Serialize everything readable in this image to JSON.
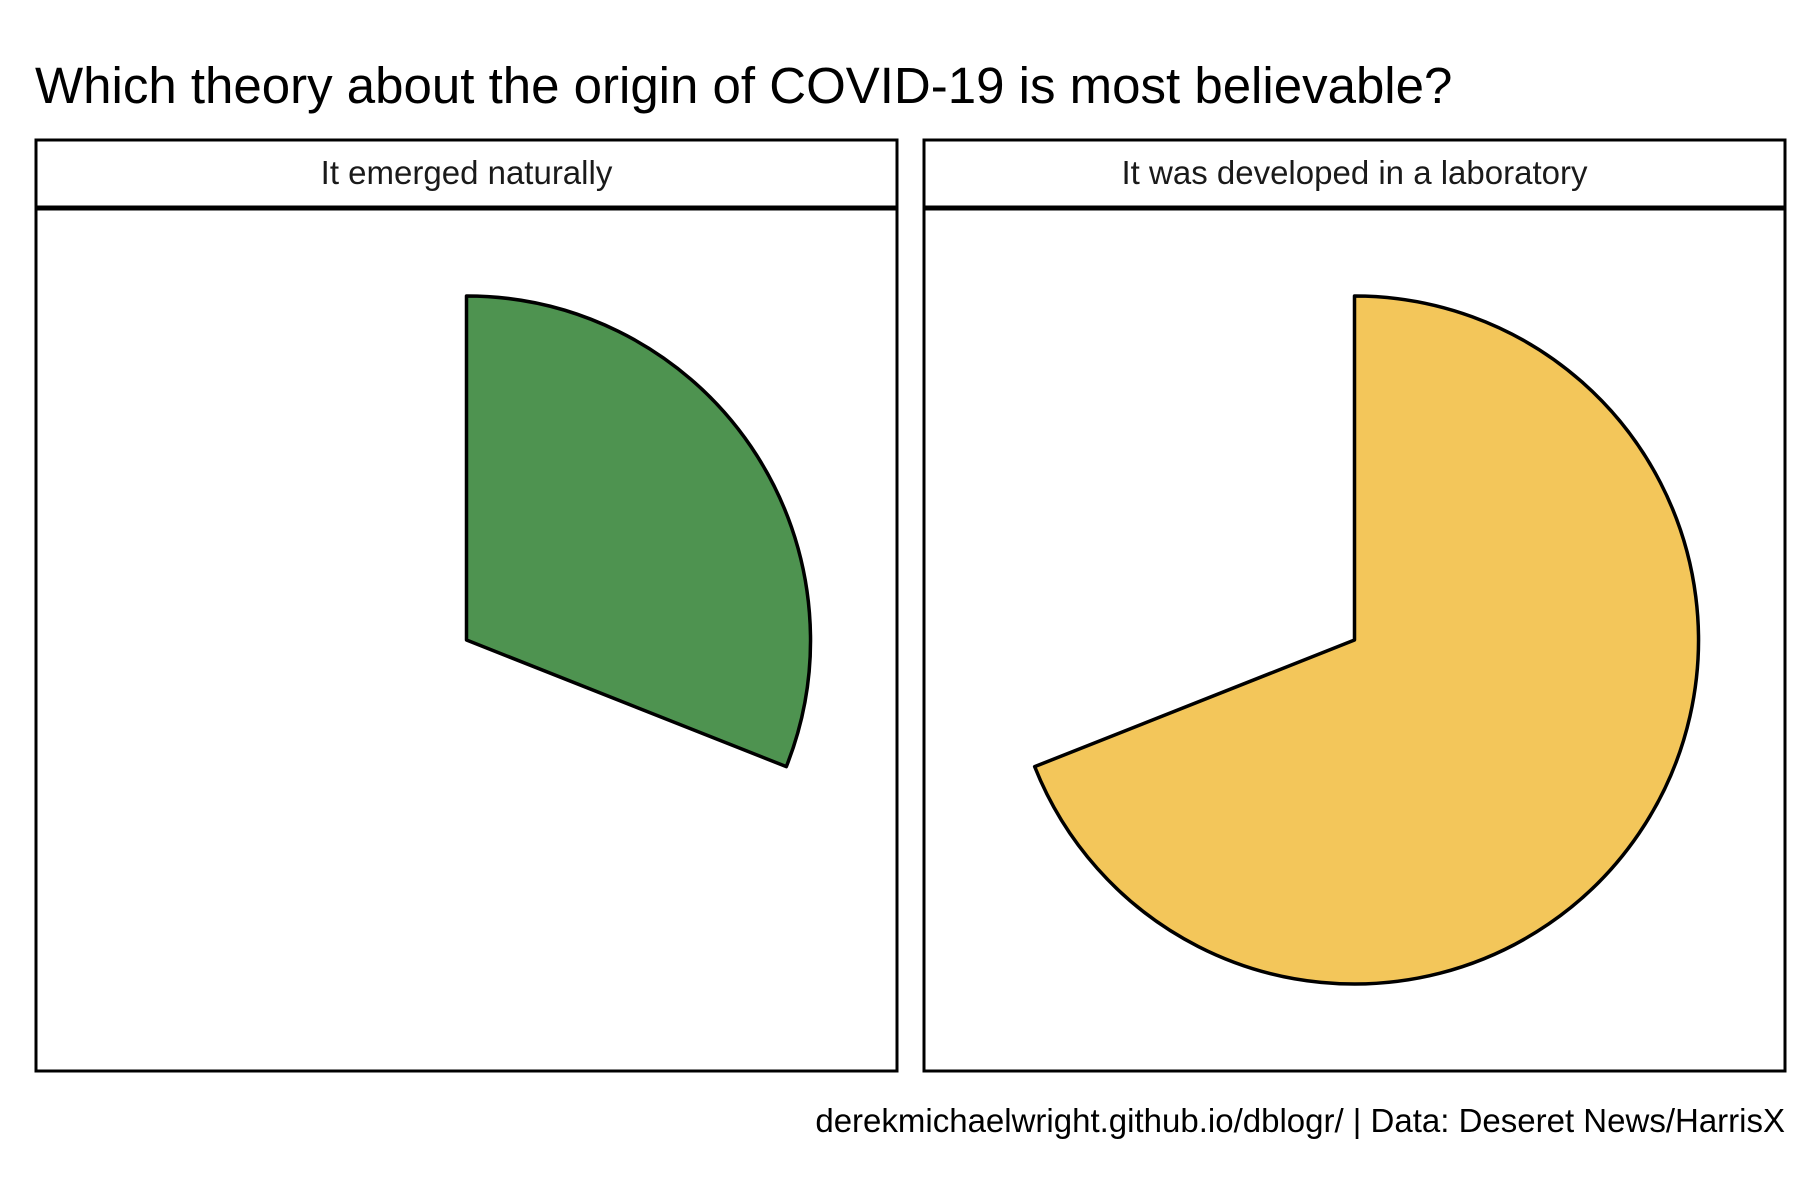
{
  "chart_data": {
    "type": "pie",
    "title": "Which theory about the origin of COVID-19 is most believable?",
    "caption": "derekmichaelwright.github.io/dblogr/ | Data: Deseret News/HarrisX",
    "unit": "percent",
    "panels": [
      {
        "label": "It emerged naturally",
        "value": 31,
        "color": "#4e9350"
      },
      {
        "label": "It was developed in a laboratory",
        "value": 69,
        "color": "#f3c65a"
      }
    ],
    "legend": "none",
    "grid": false
  }
}
